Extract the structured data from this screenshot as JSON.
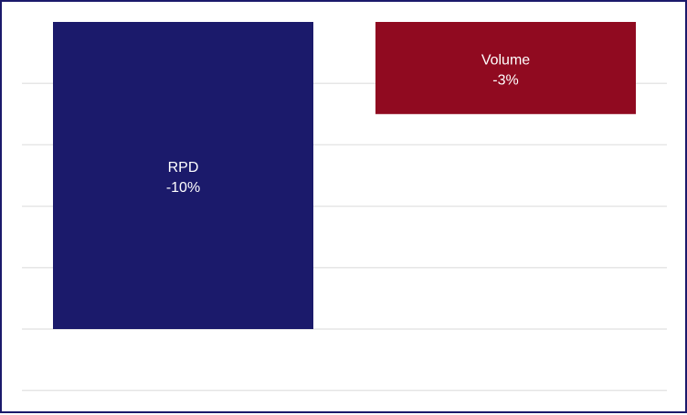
{
  "chart_data": {
    "type": "bar",
    "categories": [
      "RPD",
      "Volume"
    ],
    "values": [
      -10,
      -3
    ],
    "value_labels": [
      "-10%",
      "-3%"
    ],
    "ylim": [
      -12,
      0
    ],
    "grid": true,
    "colors": [
      "#1b1a6b",
      "#900a20"
    ],
    "gridline_color": "#e6e6e6",
    "frame_color": "#1b1a6b"
  }
}
